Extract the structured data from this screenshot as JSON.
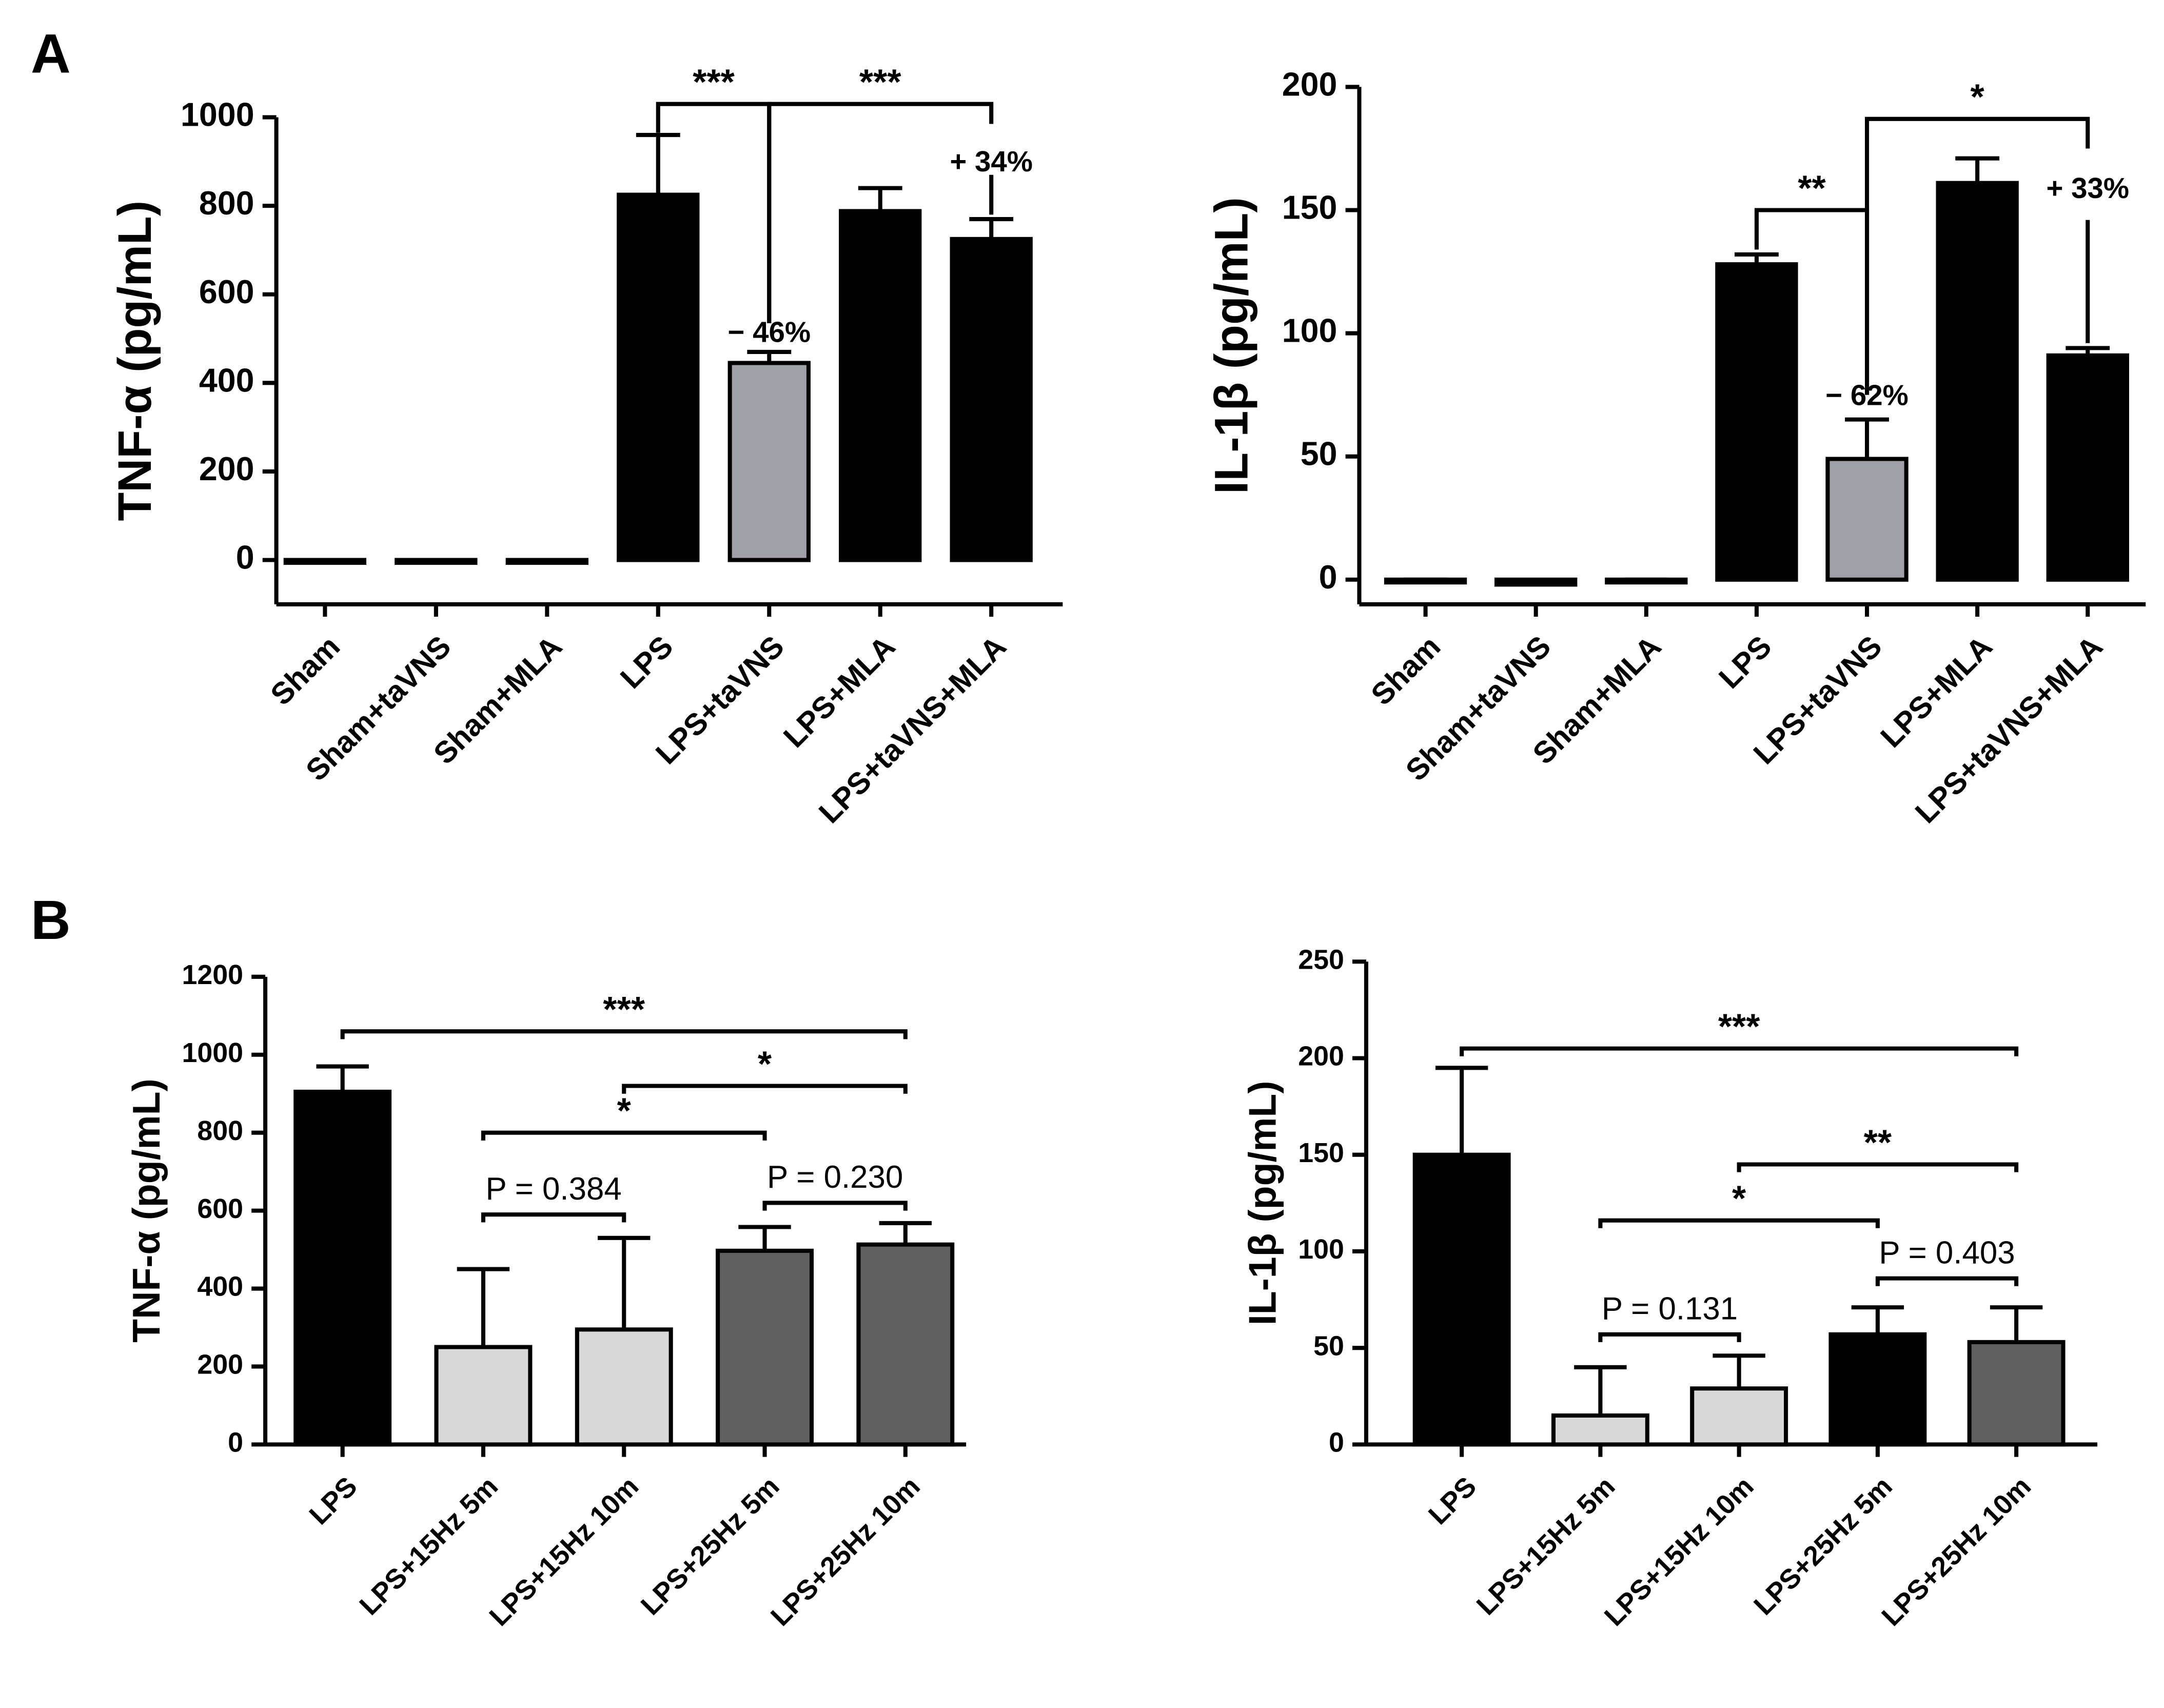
{
  "chart_data": [
    {
      "type": "bar",
      "panel": "A",
      "ylabel": "TNF-α (pg/mL)",
      "categories": [
        "Sham",
        "Sham+taVNS",
        "Sham+MLA",
        "LPS",
        "LPS+taVNS",
        "LPS+MLA",
        "LPS+taVNS+MLA"
      ],
      "values": [
        -5,
        -5,
        -5,
        825,
        445,
        788,
        725
      ],
      "errors": [
        5,
        5,
        5,
        135,
        25,
        52,
        45
      ],
      "colors": [
        "#000000",
        "#000000",
        "#000000",
        "#000000",
        "#a0a0a8",
        "#000000",
        "#000000"
      ],
      "ylim": [
        -100,
        1000
      ],
      "yticks": [
        0,
        200,
        400,
        600,
        800,
        1000
      ],
      "annotations": [
        "***",
        "***",
        "− 46%",
        "+ 34%"
      ]
    },
    {
      "type": "bar",
      "ylabel": "IL-1β (pg/mL)",
      "categories": [
        "Sham",
        "Sham+taVNS",
        "Sham+MLA",
        "LPS",
        "LPS+taVNS",
        "LPS+MLA",
        "LPS+taVNS+MLA"
      ],
      "values": [
        -1,
        -2,
        -1,
        128,
        49,
        161,
        91
      ],
      "errors": [
        1,
        1,
        1,
        4,
        16,
        10,
        3
      ],
      "colors": [
        "#000000",
        "#000000",
        "#000000",
        "#000000",
        "#a0a0a8",
        "#000000",
        "#000000"
      ],
      "ylim": [
        -10,
        200
      ],
      "yticks": [
        0,
        50,
        100,
        150,
        200
      ],
      "annotations": [
        "**",
        "*",
        "− 62%",
        "+ 33%"
      ]
    },
    {
      "type": "bar",
      "panel": "B",
      "ylabel": "TNF-α (pg/mL)",
      "categories": [
        "LPS",
        "LPS+15Hz 5m",
        "LPS+15Hz 10m",
        "LPS+25Hz 5m",
        "LPS+25Hz 10m"
      ],
      "values": [
        905,
        250,
        295,
        497,
        513
      ],
      "errors": [
        65,
        200,
        235,
        61,
        55
      ],
      "colors": [
        "#000000",
        "#d9d9d9",
        "#d9d9d9",
        "#606060",
        "#606060"
      ],
      "ylim": [
        0,
        1200
      ],
      "yticks": [
        0,
        200,
        400,
        600,
        800,
        1000,
        1200
      ],
      "annotations": [
        "***",
        "*",
        "*",
        "P = 0.384",
        "P = 0.230"
      ]
    },
    {
      "type": "bar",
      "ylabel": "IL-1β (pg/mL)",
      "categories": [
        "LPS",
        "LPS+15Hz 5m",
        "LPS+15Hz 10m",
        "LPS+25Hz 5m",
        "LPS+25Hz 10m"
      ],
      "values": [
        150,
        15,
        29,
        57,
        53
      ],
      "errors": [
        45,
        25,
        17,
        14,
        18
      ],
      "colors": [
        "#000000",
        "#d9d9d9",
        "#d9d9d9",
        "#000000",
        "#606060"
      ],
      "ylim": [
        0,
        250
      ],
      "yticks": [
        0,
        50,
        100,
        150,
        200,
        250
      ],
      "annotations": [
        "***",
        "**",
        "*",
        "P = 0.131",
        "P = 0.403"
      ]
    }
  ]
}
